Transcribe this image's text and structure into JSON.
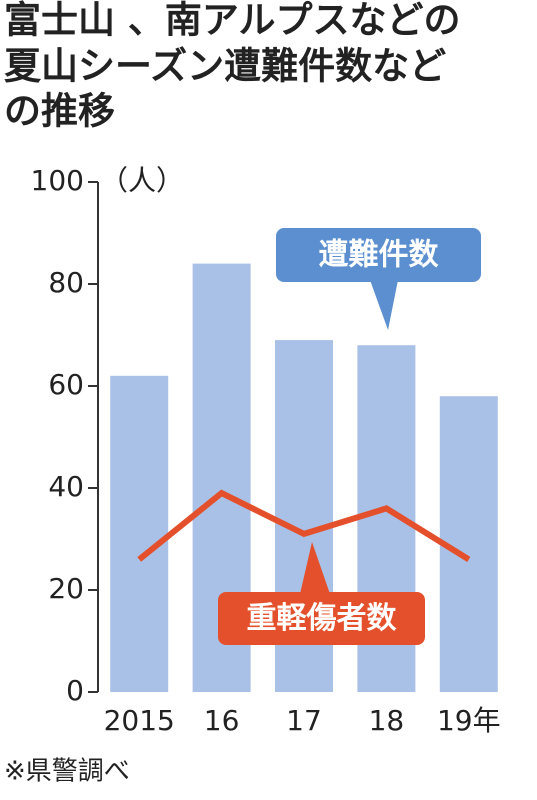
{
  "chart_data": {
    "type": "bar",
    "title": [
      "富士山 、南アルプスなどの",
      "夏山シーズン遭難件数など",
      "の推移"
    ],
    "y_label": "（人）",
    "categories": [
      "2015",
      "16",
      "17",
      "18",
      "19年"
    ],
    "series": [
      {
        "name": "遭難件数",
        "type": "bar",
        "color": "#a9c1e6",
        "label_color": "#5b8fd0",
        "values": [
          62,
          84,
          69,
          68,
          58
        ]
      },
      {
        "name": "重軽傷者数",
        "type": "line",
        "color": "#e4502b",
        "label_color": "#e4502b",
        "values": [
          26,
          39,
          31,
          36,
          26
        ]
      }
    ],
    "ylim": [
      0,
      100
    ],
    "yticks": [
      0,
      20,
      40,
      60,
      80,
      100
    ],
    "note": "※県警調べ"
  }
}
